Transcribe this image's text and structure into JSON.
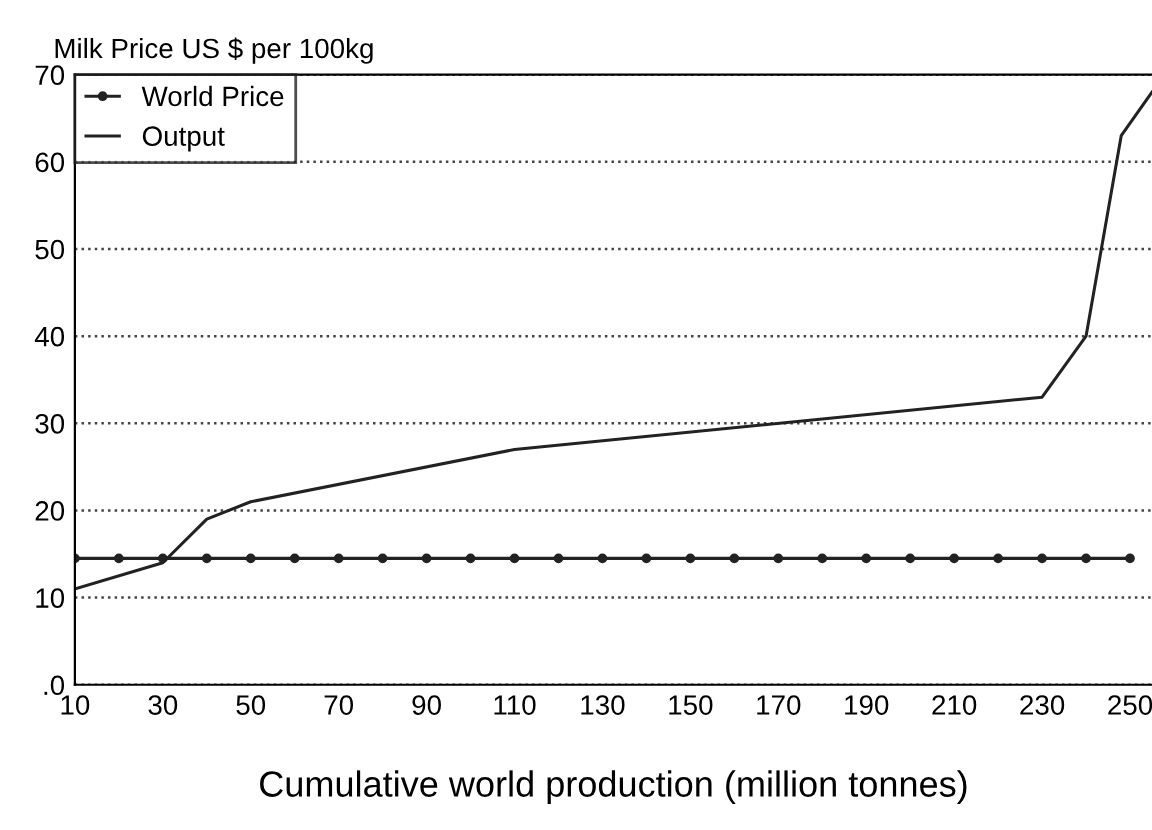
{
  "chart_data": {
    "type": "line",
    "title": "Milk Price US $ per 100kg",
    "xlabel": "Cumulative world production (million tonnes)",
    "series": [
      {
        "name": "World Price",
        "color": "#222222",
        "marker": "circle",
        "x": [
          10,
          20,
          30,
          40,
          50,
          60,
          70,
          80,
          90,
          100,
          110,
          120,
          130,
          140,
          150,
          160,
          170,
          180,
          190,
          200,
          210,
          220,
          230,
          240,
          250
        ],
        "values": [
          14.5,
          14.5,
          14.5,
          14.5,
          14.5,
          14.5,
          14.5,
          14.5,
          14.5,
          14.5,
          14.5,
          14.5,
          14.5,
          14.5,
          14.5,
          14.5,
          14.5,
          14.5,
          14.5,
          14.5,
          14.5,
          14.5,
          14.5,
          14.5,
          14.5
        ]
      },
      {
        "name": "Output",
        "color": "#222222",
        "marker": "none",
        "x": [
          10,
          30,
          40,
          50,
          110,
          230,
          240,
          248,
          255
        ],
        "values": [
          11,
          14,
          19,
          21,
          27,
          33,
          40,
          63,
          68
        ]
      }
    ],
    "xlim": [
      10,
      255
    ],
    "xticks": [
      10,
      30,
      50,
      70,
      90,
      110,
      130,
      150,
      170,
      190,
      210,
      230,
      250
    ],
    "ylim": [
      0,
      70
    ],
    "yticks": [
      {
        "value": 0,
        "label": ".0"
      },
      10,
      20,
      30,
      40,
      50,
      60,
      70
    ],
    "grid": "y",
    "legend": "top left"
  }
}
